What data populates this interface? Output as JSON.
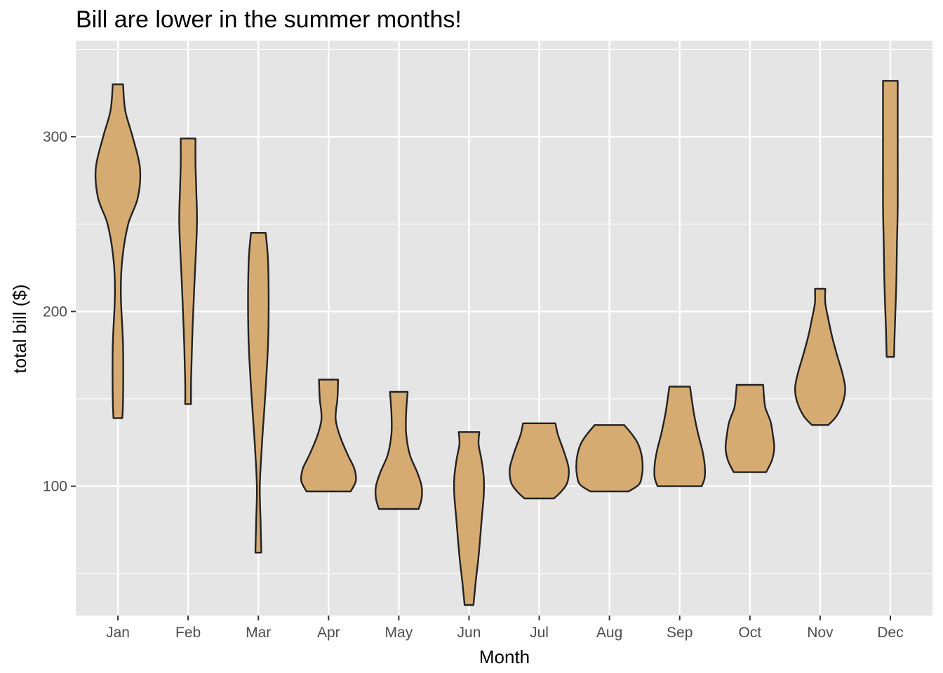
{
  "chart_data": {
    "type": "violin",
    "title": "Bill are lower in the summer months!",
    "xlabel": "Month",
    "ylabel": "total bill ($)",
    "ylim": [
      26,
      355
    ],
    "yticks": [
      100,
      200,
      300
    ],
    "grid": true,
    "fill_color": "#D6AB72",
    "outline_color": "#222222",
    "panel_bg": "#E5E5E5",
    "categories": [
      "Jan",
      "Feb",
      "Mar",
      "Apr",
      "May",
      "Jun",
      "Jul",
      "Aug",
      "Sep",
      "Oct",
      "Nov",
      "Dec"
    ],
    "violins": [
      {
        "category": "Jan",
        "min": 139,
        "max": 330,
        "profile": [
          [
            139,
            6
          ],
          [
            150,
            7
          ],
          [
            180,
            7
          ],
          [
            210,
            4
          ],
          [
            230,
            6
          ],
          [
            250,
            14
          ],
          [
            265,
            27
          ],
          [
            282,
            30
          ],
          [
            300,
            20
          ],
          [
            315,
            10
          ],
          [
            330,
            7
          ]
        ]
      },
      {
        "category": "Feb",
        "min": 147,
        "max": 299,
        "profile": [
          [
            147,
            4
          ],
          [
            160,
            4
          ],
          [
            190,
            6
          ],
          [
            220,
            9
          ],
          [
            250,
            12
          ],
          [
            270,
            11
          ],
          [
            285,
            10
          ],
          [
            299,
            10
          ]
        ]
      },
      {
        "category": "Mar",
        "min": 62,
        "max": 245,
        "profile": [
          [
            62,
            4
          ],
          [
            80,
            3
          ],
          [
            100,
            2
          ],
          [
            125,
            5
          ],
          [
            150,
            9
          ],
          [
            180,
            13
          ],
          [
            205,
            14
          ],
          [
            230,
            13
          ],
          [
            245,
            10
          ]
        ]
      },
      {
        "category": "Apr",
        "min": 97,
        "max": 161,
        "profile": [
          [
            97,
            30
          ],
          [
            103,
            37
          ],
          [
            110,
            35
          ],
          [
            118,
            26
          ],
          [
            128,
            16
          ],
          [
            137,
            10
          ],
          [
            143,
            10
          ],
          [
            150,
            12
          ],
          [
            161,
            13
          ]
        ]
      },
      {
        "category": "May",
        "min": 87,
        "max": 154,
        "profile": [
          [
            87,
            27
          ],
          [
            93,
            31
          ],
          [
            100,
            31
          ],
          [
            108,
            25
          ],
          [
            118,
            15
          ],
          [
            130,
            10
          ],
          [
            142,
            10
          ],
          [
            154,
            12
          ]
        ]
      },
      {
        "category": "Jun",
        "min": 32,
        "max": 131,
        "profile": [
          [
            32,
            6
          ],
          [
            45,
            9
          ],
          [
            60,
            13
          ],
          [
            80,
            17
          ],
          [
            95,
            20
          ],
          [
            105,
            20
          ],
          [
            115,
            17
          ],
          [
            124,
            13
          ],
          [
            131,
            14
          ]
        ]
      },
      {
        "category": "Jul",
        "min": 93,
        "max": 136,
        "profile": [
          [
            93,
            20
          ],
          [
            97,
            30
          ],
          [
            102,
            38
          ],
          [
            110,
            40
          ],
          [
            118,
            35
          ],
          [
            124,
            30
          ],
          [
            130,
            25
          ],
          [
            136,
            22
          ]
        ]
      },
      {
        "category": "Aug",
        "min": 97,
        "max": 135,
        "profile": [
          [
            97,
            26
          ],
          [
            101,
            40
          ],
          [
            106,
            44
          ],
          [
            112,
            45
          ],
          [
            119,
            43
          ],
          [
            125,
            38
          ],
          [
            130,
            30
          ],
          [
            135,
            20
          ]
        ]
      },
      {
        "category": "Sep",
        "min": 100,
        "max": 157,
        "profile": [
          [
            100,
            30
          ],
          [
            105,
            34
          ],
          [
            112,
            34
          ],
          [
            120,
            31
          ],
          [
            130,
            25
          ],
          [
            140,
            20
          ],
          [
            148,
            17
          ],
          [
            157,
            14
          ]
        ]
      },
      {
        "category": "Oct",
        "min": 108,
        "max": 158,
        "profile": [
          [
            108,
            22
          ],
          [
            115,
            30
          ],
          [
            122,
            33
          ],
          [
            130,
            31
          ],
          [
            137,
            28
          ],
          [
            145,
            21
          ],
          [
            152,
            19
          ],
          [
            158,
            18
          ]
        ]
      },
      {
        "category": "Nov",
        "min": 135,
        "max": 213,
        "profile": [
          [
            135,
            11
          ],
          [
            140,
            22
          ],
          [
            148,
            31
          ],
          [
            156,
            34
          ],
          [
            165,
            30
          ],
          [
            175,
            23
          ],
          [
            186,
            16
          ],
          [
            196,
            11
          ],
          [
            205,
            7
          ],
          [
            213,
            7
          ]
        ]
      },
      {
        "category": "Dec",
        "min": 174,
        "max": 332,
        "profile": [
          [
            174,
            5
          ],
          [
            190,
            6
          ],
          [
            215,
            8
          ],
          [
            240,
            9
          ],
          [
            260,
            10
          ],
          [
            290,
            10
          ],
          [
            310,
            10
          ],
          [
            332,
            10
          ]
        ]
      }
    ]
  }
}
